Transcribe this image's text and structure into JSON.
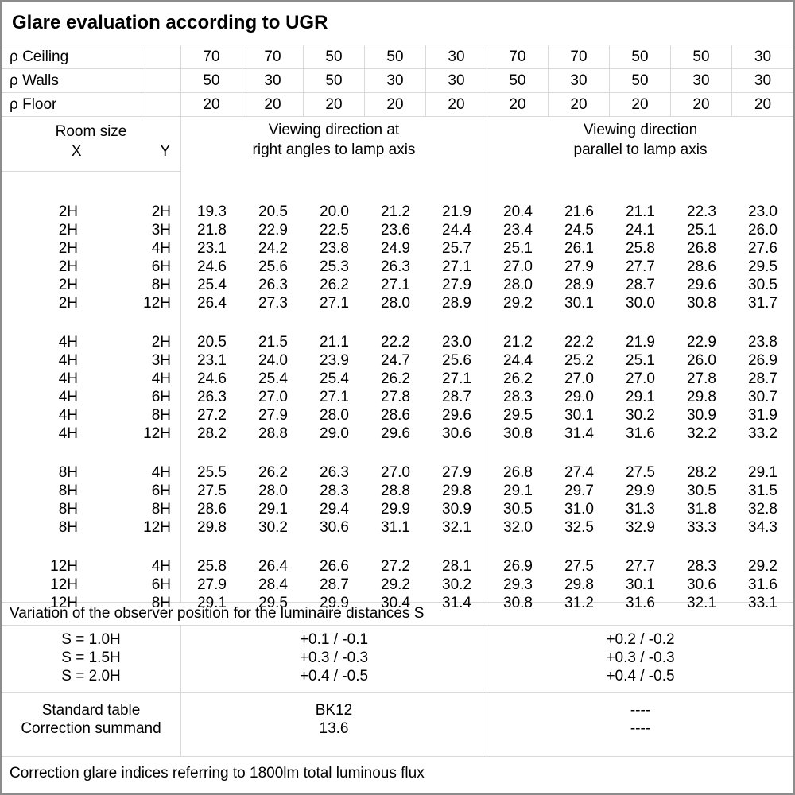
{
  "title": "Glare evaluation according to UGR",
  "reflectance": {
    "rows": [
      {
        "label": "ρ Ceiling",
        "values": [
          "70",
          "70",
          "50",
          "50",
          "30",
          "70",
          "70",
          "50",
          "50",
          "30"
        ]
      },
      {
        "label": "ρ Walls",
        "values": [
          "50",
          "30",
          "50",
          "30",
          "30",
          "50",
          "30",
          "50",
          "30",
          "30"
        ]
      },
      {
        "label": "ρ Floor",
        "values": [
          "20",
          "20",
          "20",
          "20",
          "20",
          "20",
          "20",
          "20",
          "20",
          "20"
        ]
      }
    ]
  },
  "header": {
    "room_size": "Room size",
    "x": "X",
    "y": "Y",
    "group_right_angles_line1": "Viewing direction at",
    "group_right_angles_line2": "right angles to lamp axis",
    "group_parallel_line1": "Viewing direction",
    "group_parallel_line2": "parallel to lamp axis"
  },
  "ugr_table": {
    "blocks": [
      {
        "rows": [
          {
            "x": "2H",
            "y": "2H",
            "right_angles": [
              "19.3",
              "20.5",
              "20.0",
              "21.2",
              "21.9"
            ],
            "parallel": [
              "20.4",
              "21.6",
              "21.1",
              "22.3",
              "23.0"
            ]
          },
          {
            "x": "2H",
            "y": "3H",
            "right_angles": [
              "21.8",
              "22.9",
              "22.5",
              "23.6",
              "24.4"
            ],
            "parallel": [
              "23.4",
              "24.5",
              "24.1",
              "25.1",
              "26.0"
            ]
          },
          {
            "x": "2H",
            "y": "4H",
            "right_angles": [
              "23.1",
              "24.2",
              "23.8",
              "24.9",
              "25.7"
            ],
            "parallel": [
              "25.1",
              "26.1",
              "25.8",
              "26.8",
              "27.6"
            ]
          },
          {
            "x": "2H",
            "y": "6H",
            "right_angles": [
              "24.6",
              "25.6",
              "25.3",
              "26.3",
              "27.1"
            ],
            "parallel": [
              "27.0",
              "27.9",
              "27.7",
              "28.6",
              "29.5"
            ]
          },
          {
            "x": "2H",
            "y": "8H",
            "right_angles": [
              "25.4",
              "26.3",
              "26.2",
              "27.1",
              "27.9"
            ],
            "parallel": [
              "28.0",
              "28.9",
              "28.7",
              "29.6",
              "30.5"
            ]
          },
          {
            "x": "2H",
            "y": "12H",
            "right_angles": [
              "26.4",
              "27.3",
              "27.1",
              "28.0",
              "28.9"
            ],
            "parallel": [
              "29.2",
              "30.1",
              "30.0",
              "30.8",
              "31.7"
            ]
          }
        ]
      },
      {
        "rows": [
          {
            "x": "4H",
            "y": "2H",
            "right_angles": [
              "20.5",
              "21.5",
              "21.1",
              "22.2",
              "23.0"
            ],
            "parallel": [
              "21.2",
              "22.2",
              "21.9",
              "22.9",
              "23.8"
            ]
          },
          {
            "x": "4H",
            "y": "3H",
            "right_angles": [
              "23.1",
              "24.0",
              "23.9",
              "24.7",
              "25.6"
            ],
            "parallel": [
              "24.4",
              "25.2",
              "25.1",
              "26.0",
              "26.9"
            ]
          },
          {
            "x": "4H",
            "y": "4H",
            "right_angles": [
              "24.6",
              "25.4",
              "25.4",
              "26.2",
              "27.1"
            ],
            "parallel": [
              "26.2",
              "27.0",
              "27.0",
              "27.8",
              "28.7"
            ]
          },
          {
            "x": "4H",
            "y": "6H",
            "right_angles": [
              "26.3",
              "27.0",
              "27.1",
              "27.8",
              "28.7"
            ],
            "parallel": [
              "28.3",
              "29.0",
              "29.1",
              "29.8",
              "30.7"
            ]
          },
          {
            "x": "4H",
            "y": "8H",
            "right_angles": [
              "27.2",
              "27.9",
              "28.0",
              "28.6",
              "29.6"
            ],
            "parallel": [
              "29.5",
              "30.1",
              "30.2",
              "30.9",
              "31.9"
            ]
          },
          {
            "x": "4H",
            "y": "12H",
            "right_angles": [
              "28.2",
              "28.8",
              "29.0",
              "29.6",
              "30.6"
            ],
            "parallel": [
              "30.8",
              "31.4",
              "31.6",
              "32.2",
              "33.2"
            ]
          }
        ]
      },
      {
        "rows": [
          {
            "x": "8H",
            "y": "4H",
            "right_angles": [
              "25.5",
              "26.2",
              "26.3",
              "27.0",
              "27.9"
            ],
            "parallel": [
              "26.8",
              "27.4",
              "27.5",
              "28.2",
              "29.1"
            ]
          },
          {
            "x": "8H",
            "y": "6H",
            "right_angles": [
              "27.5",
              "28.0",
              "28.3",
              "28.8",
              "29.8"
            ],
            "parallel": [
              "29.1",
              "29.7",
              "29.9",
              "30.5",
              "31.5"
            ]
          },
          {
            "x": "8H",
            "y": "8H",
            "right_angles": [
              "28.6",
              "29.1",
              "29.4",
              "29.9",
              "30.9"
            ],
            "parallel": [
              "30.5",
              "31.0",
              "31.3",
              "31.8",
              "32.8"
            ]
          },
          {
            "x": "8H",
            "y": "12H",
            "right_angles": [
              "29.8",
              "30.2",
              "30.6",
              "31.1",
              "32.1"
            ],
            "parallel": [
              "32.0",
              "32.5",
              "32.9",
              "33.3",
              "34.3"
            ]
          }
        ]
      },
      {
        "rows": [
          {
            "x": "12H",
            "y": "4H",
            "right_angles": [
              "25.8",
              "26.4",
              "26.6",
              "27.2",
              "28.1"
            ],
            "parallel": [
              "26.9",
              "27.5",
              "27.7",
              "28.3",
              "29.2"
            ]
          },
          {
            "x": "12H",
            "y": "6H",
            "right_angles": [
              "27.9",
              "28.4",
              "28.7",
              "29.2",
              "30.2"
            ],
            "parallel": [
              "29.3",
              "29.8",
              "30.1",
              "30.6",
              "31.6"
            ]
          },
          {
            "x": "12H",
            "y": "8H",
            "right_angles": [
              "29.1",
              "29.5",
              "29.9",
              "30.4",
              "31.4"
            ],
            "parallel": [
              "30.8",
              "31.2",
              "31.6",
              "32.1",
              "33.1"
            ]
          }
        ]
      }
    ]
  },
  "variation": {
    "note": "Variation of the observer position for the luminaire distances S",
    "rows": [
      {
        "label": "S = 1.0H",
        "right_angles": "+0.1 / -0.1",
        "parallel": "+0.2 / -0.2"
      },
      {
        "label": "S = 1.5H",
        "right_angles": "+0.3 / -0.3",
        "parallel": "+0.3 / -0.3"
      },
      {
        "label": "S = 2.0H",
        "right_angles": "+0.4 / -0.5",
        "parallel": "+0.4 / -0.5"
      }
    ]
  },
  "summary": {
    "rows": [
      {
        "label": "Standard table",
        "right_angles": "BK12",
        "parallel": "----"
      },
      {
        "label": "Correction summand",
        "right_angles": "13.6",
        "parallel": "----"
      }
    ]
  },
  "footer": {
    "note": "Correction glare indices referring to 1800lm total luminous flux"
  },
  "colors": {
    "grid": "#d9d9d9",
    "frame": "#8c8c8c",
    "text": "#000000",
    "background": "#ffffff"
  }
}
